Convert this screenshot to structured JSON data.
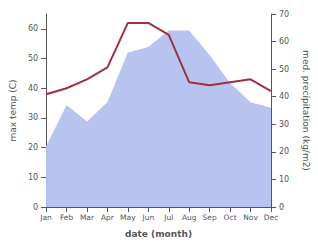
{
  "chart_data": {
    "type": "line",
    "categories": [
      "Jan",
      "Feb",
      "Mar",
      "Apr",
      "May",
      "Jun",
      "Jul",
      "Aug",
      "Sep",
      "Oct",
      "Nov",
      "Dec"
    ],
    "series": [
      {
        "type": "area",
        "color": "#b8c4f0",
        "axis": "y2",
        "values": [
          22,
          37,
          31,
          38,
          56,
          58,
          64,
          64,
          55,
          45,
          38,
          36
        ]
      },
      {
        "type": "line",
        "color": "#a03040",
        "values": [
          38,
          40,
          43,
          47,
          62,
          62,
          58,
          42,
          41,
          42,
          43,
          39
        ]
      }
    ],
    "xlabel": "date (month)",
    "ylabel": "max temp (C)",
    "y2label": "med. precipitation (kg/m2)",
    "ylim": [
      0,
      65
    ],
    "yticks": [
      0,
      10,
      20,
      30,
      40,
      50,
      60
    ],
    "y2lim": [
      0,
      70
    ],
    "y2ticks": [
      0,
      10,
      20,
      30,
      40,
      50,
      60,
      70
    ],
    "grid": false
  }
}
